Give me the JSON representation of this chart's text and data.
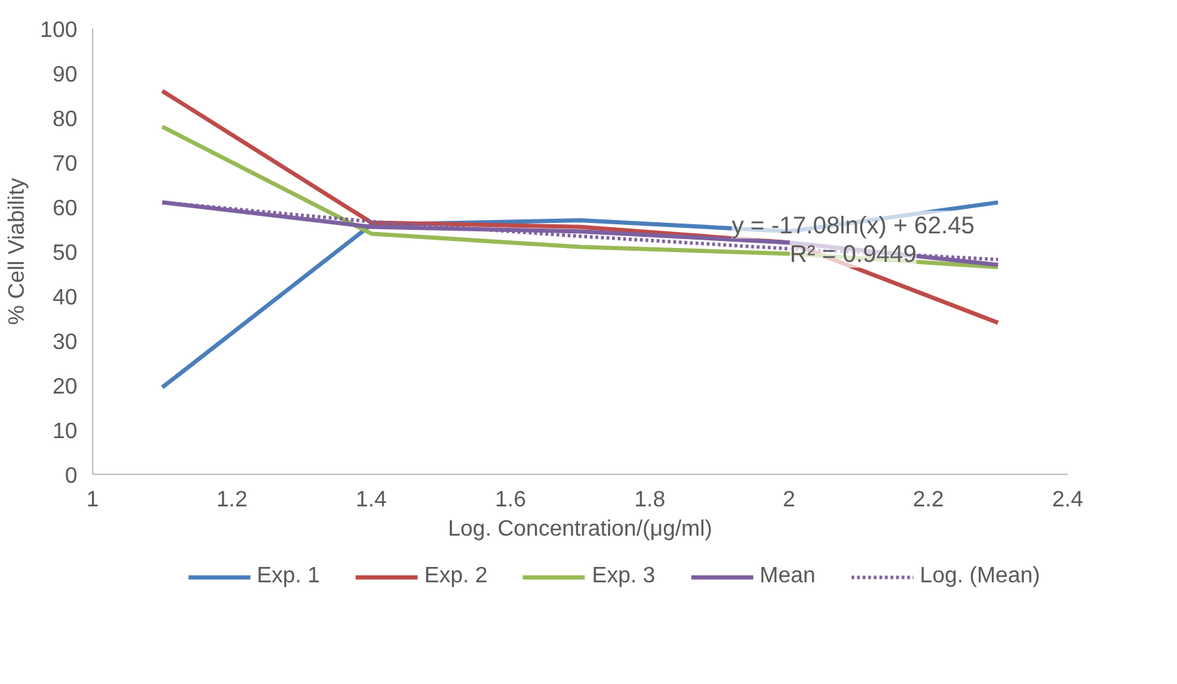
{
  "chart_data": {
    "type": "line",
    "xlabel": "Log. Concentration/(μg/ml)",
    "ylabel": "% Cell Viability",
    "x": [
      1.1,
      1.4,
      1.7,
      2.0,
      2.3
    ],
    "series": [
      {
        "name": "Exp. 1",
        "color": "#4a7ebb",
        "values": [
          19.5,
          56,
          57,
          54.5,
          61
        ]
      },
      {
        "name": "Exp. 2",
        "color": "#be4b48",
        "values": [
          86,
          56.5,
          55.5,
          52,
          34
        ]
      },
      {
        "name": "Exp. 3",
        "color": "#98b954",
        "values": [
          78,
          54,
          51,
          49.5,
          46.5
        ]
      },
      {
        "name": "Mean",
        "color": "#7d60a0",
        "values": [
          61,
          55.5,
          54.5,
          52,
          47
        ]
      },
      {
        "name": "Log. (Mean)",
        "color": "#7d60a0",
        "line_style": "dotted",
        "values": [
          61,
          56.7,
          53.4,
          50.6,
          48.2
        ]
      }
    ],
    "annotations": [
      "y = -17.08ln(x) + 62.45",
      "R² = 0.9449"
    ],
    "xlim": [
      1,
      2.4
    ],
    "xticks": [
      1,
      {
        "value": 1.2,
        "label": "1.2"
      },
      {
        "value": 1.4,
        "label": "1.4"
      },
      {
        "value": 1.6,
        "label": "1.6"
      },
      {
        "value": 1.8,
        "label": "1.8"
      },
      2,
      {
        "value": 2.2,
        "label": "2.2"
      },
      {
        "value": 2.4,
        "label": "2.4"
      }
    ],
    "ylim": [
      0,
      100
    ],
    "yticks": [
      0,
      10,
      20,
      30,
      40,
      50,
      60,
      70,
      80,
      90,
      100
    ],
    "grid": false,
    "legend": "bottom",
    "marker": "none",
    "line_style": "solid"
  }
}
